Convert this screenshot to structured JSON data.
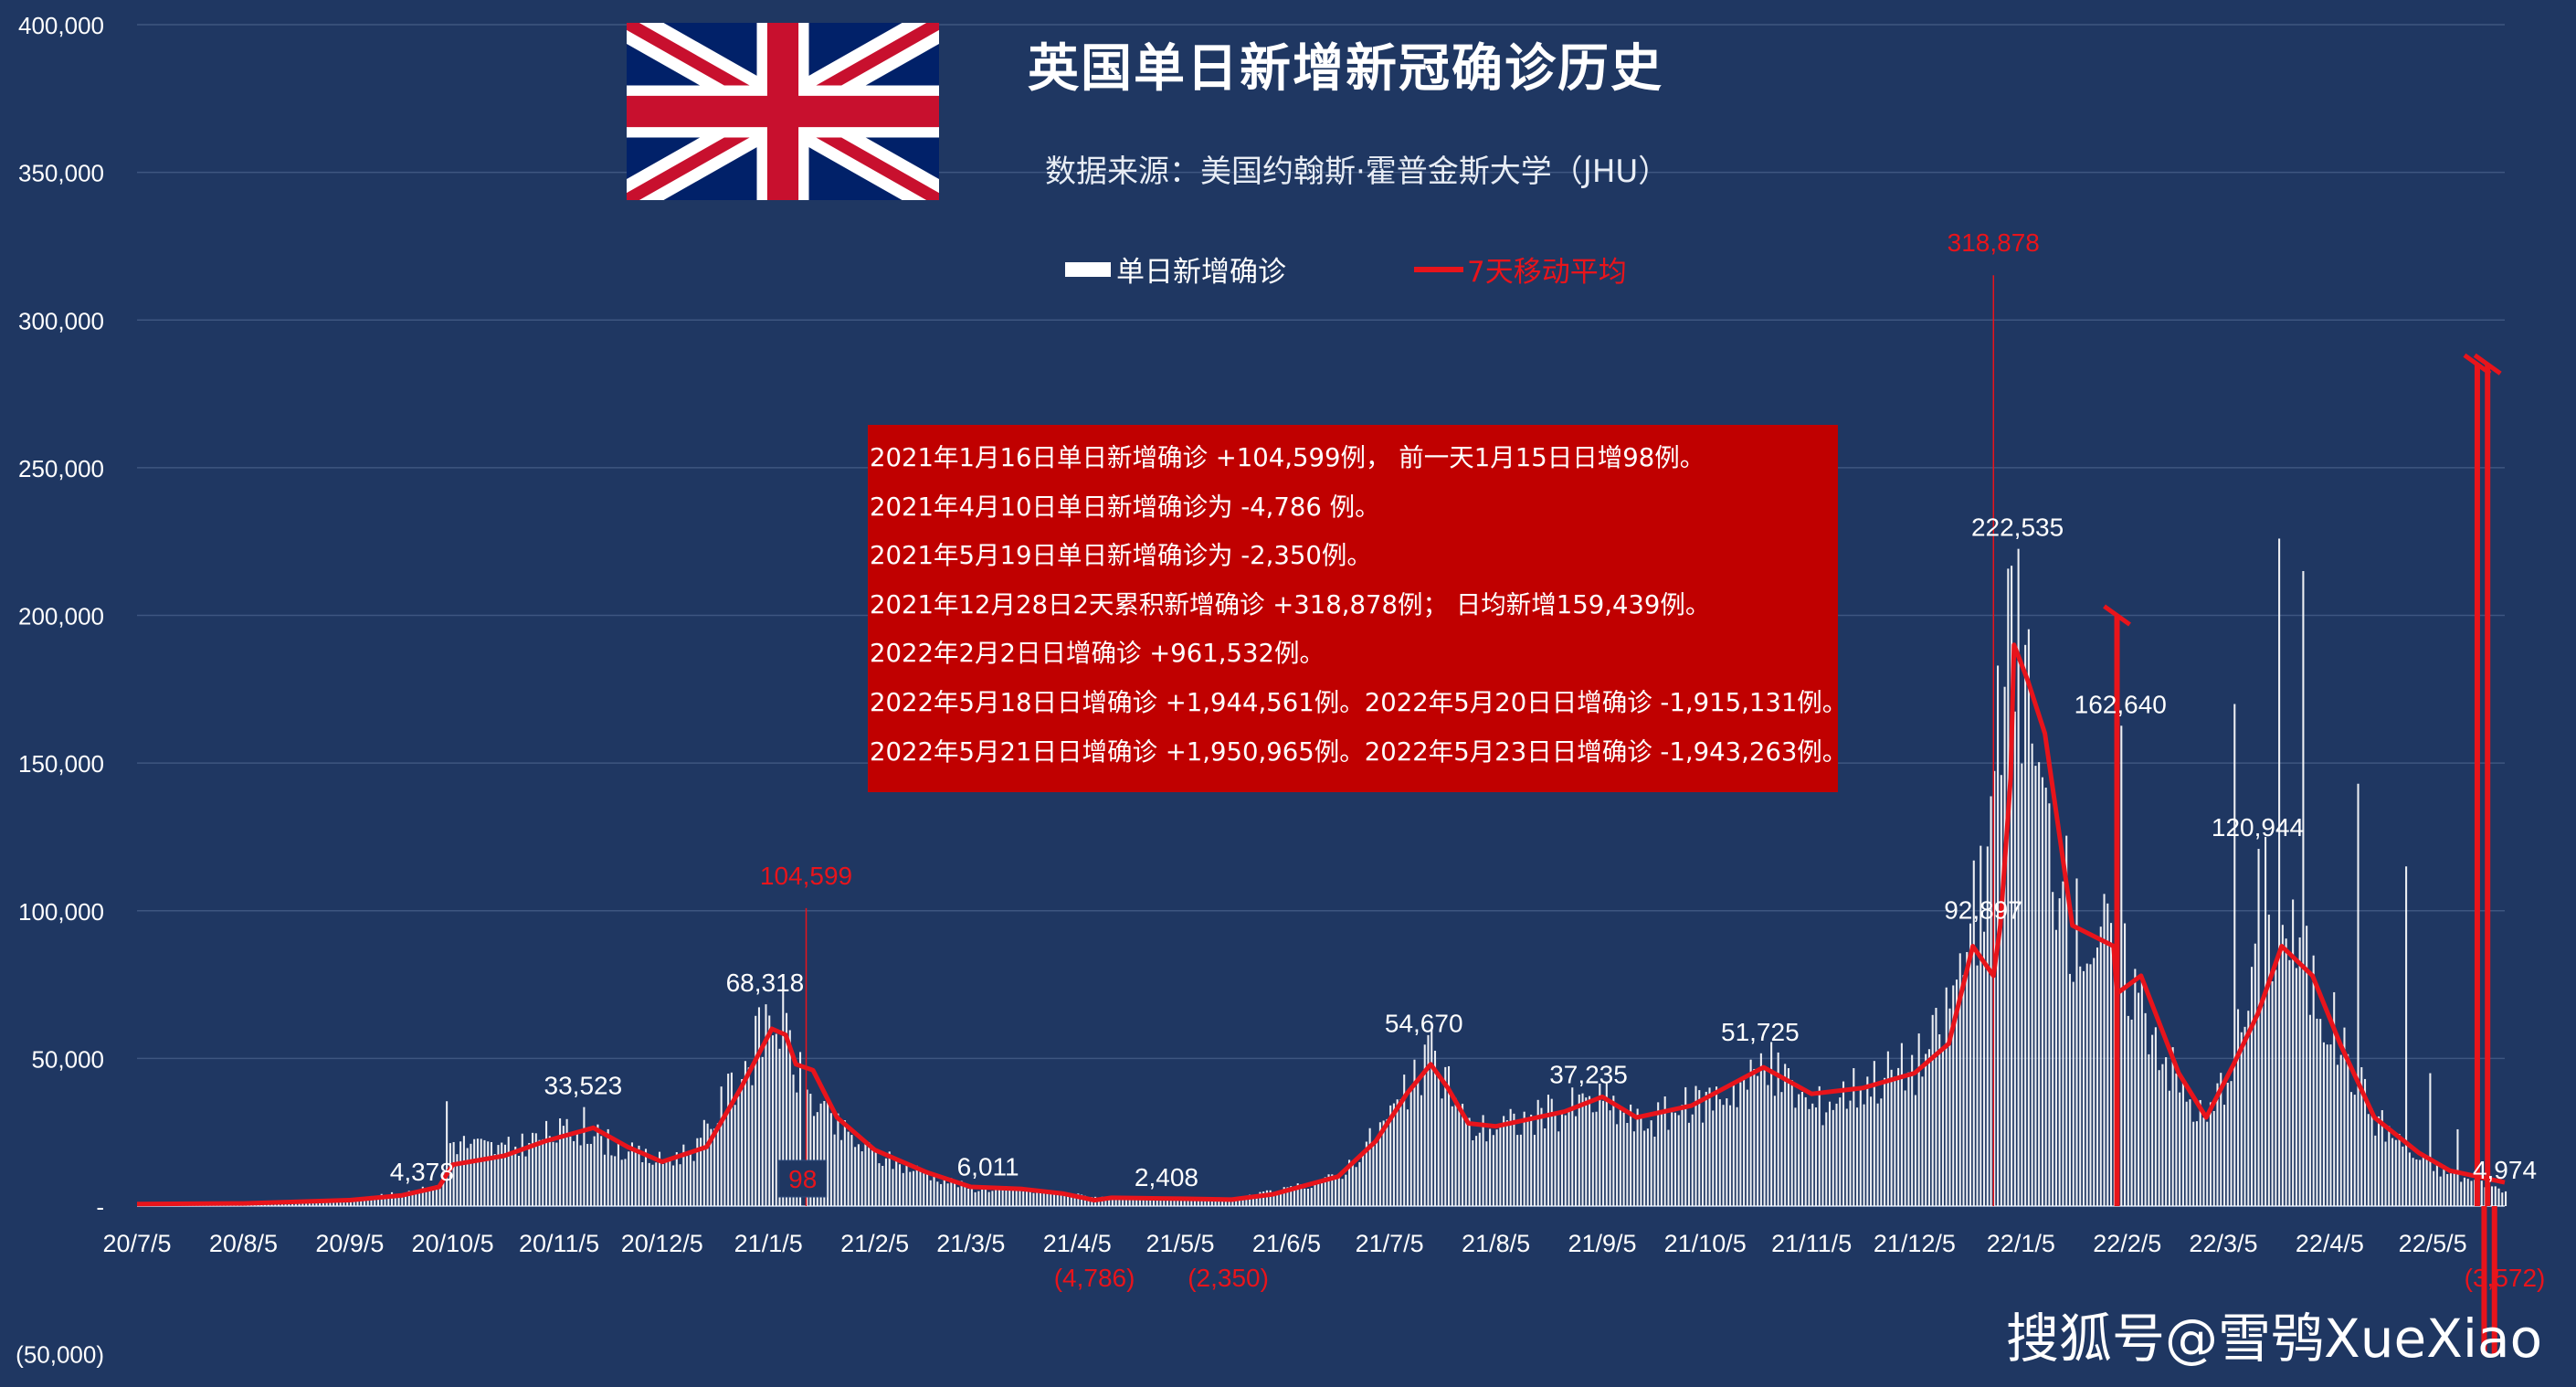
{
  "header": {
    "title": "英国单日新增新冠确诊历史",
    "source": "数据来源：美国约翰斯·霍普金斯大学（JHU）"
  },
  "legend": {
    "bar_label": "单日新增确诊",
    "line_label": "7天移动平均"
  },
  "notes": [
    "2021年1月16日单日新增确诊 +104,599例， 前一天1月15日日增98例。",
    "2021年4月10日单日新增确诊为 -4,786 例。",
    "2021年5月19日单日新增确诊为 -2,350例。",
    "2021年12月28日2天累积新增确诊 +318,878例； 日均新增159,439例。",
    "2022年2月2日日增确诊 +961,532例。",
    "2022年5月18日日增确诊 +1,944,561例。2022年5月20日日增确诊 -1,915,131例。",
    "2022年5月21日日增确诊 +1,950,965例。2022年5月23日日增确诊 -1,943,263例。"
  ],
  "watermark": "搜狐号@雪鸮XueXiao",
  "colors": {
    "background": "#1f3762",
    "bars": "#ffffff",
    "moving_average": "#e8141b",
    "note_box": "#c00000",
    "red_label": "#e8141b"
  },
  "chart_data": {
    "type": "bar",
    "overlay_type": "line",
    "ylim": [
      -50000,
      400000
    ],
    "y_ticks": [
      {
        "value": 400000,
        "label": "400,000"
      },
      {
        "value": 350000,
        "label": "350,000"
      },
      {
        "value": 300000,
        "label": "300,000"
      },
      {
        "value": 250000,
        "label": "250,000"
      },
      {
        "value": 200000,
        "label": "200,000"
      },
      {
        "value": 150000,
        "label": "150,000"
      },
      {
        "value": 100000,
        "label": "100,000"
      },
      {
        "value": 50000,
        "label": "50,000"
      },
      {
        "value": 0,
        "label": "-"
      },
      {
        "value": -50000,
        "label": "(50,000)"
      }
    ],
    "x_ticks": [
      "20/7/5",
      "20/8/5",
      "20/9/5",
      "20/10/5",
      "20/11/5",
      "20/12/5",
      "21/1/5",
      "21/2/5",
      "21/3/5",
      "21/4/5",
      "21/5/5",
      "21/6/5",
      "21/7/5",
      "21/8/5",
      "21/9/5",
      "21/10/5",
      "21/11/5",
      "21/12/5",
      "22/1/5",
      "22/2/5",
      "22/3/5",
      "22/4/5",
      "22/5/5"
    ],
    "x_domain": [
      "2020-07-05",
      "2022-05-26"
    ],
    "grid": true,
    "legend_position": "top-center",
    "series": [
      {
        "name": "单日新增确诊",
        "kind": "bar",
        "anchors": [
          [
            "2020-07-05",
            600
          ],
          [
            "2020-08-01",
            900
          ],
          [
            "2020-08-15",
            1100
          ],
          [
            "2020-09-01",
            1800
          ],
          [
            "2020-09-15",
            3500
          ],
          [
            "2020-10-01",
            6500
          ],
          [
            "2020-10-04",
            22000
          ],
          [
            "2020-10-20",
            19000
          ],
          [
            "2020-11-01",
            24000
          ],
          [
            "2020-11-12",
            26000
          ],
          [
            "2020-11-25",
            18000
          ],
          [
            "2020-12-05",
            15000
          ],
          [
            "2020-12-15",
            20000
          ],
          [
            "2020-12-25",
            40000
          ],
          [
            "2021-01-03",
            58000
          ],
          [
            "2021-01-08",
            64000
          ],
          [
            "2021-01-15",
            40000
          ],
          [
            "2021-01-25",
            26000
          ],
          [
            "2021-02-05",
            17000
          ],
          [
            "2021-02-20",
            11000
          ],
          [
            "2021-03-05",
            6000
          ],
          [
            "2021-03-20",
            5500
          ],
          [
            "2021-04-01",
            4000
          ],
          [
            "2021-04-15",
            2600
          ],
          [
            "2021-05-05",
            2300
          ],
          [
            "2021-05-20",
            2500
          ],
          [
            "2021-06-05",
            5500
          ],
          [
            "2021-06-20",
            10000
          ],
          [
            "2021-07-01",
            25000
          ],
          [
            "2021-07-10",
            38000
          ],
          [
            "2021-07-17",
            50000
          ],
          [
            "2021-07-22",
            42000
          ],
          [
            "2021-07-28",
            26000
          ],
          [
            "2021-08-10",
            28000
          ],
          [
            "2021-08-25",
            33000
          ],
          [
            "2021-09-05",
            36000
          ],
          [
            "2021-09-15",
            28000
          ],
          [
            "2021-10-01",
            34000
          ],
          [
            "2021-10-20",
            44000
          ],
          [
            "2021-10-25",
            46000
          ],
          [
            "2021-11-05",
            33000
          ],
          [
            "2021-11-20",
            42000
          ],
          [
            "2021-12-05",
            48000
          ],
          [
            "2021-12-12",
            58000
          ],
          [
            "2021-12-20",
            88000
          ],
          [
            "2021-12-27",
            118000
          ],
          [
            "2021-12-31",
            175000
          ],
          [
            "2022-01-04",
            195000
          ],
          [
            "2022-01-10",
            140000
          ],
          [
            "2022-01-20",
            95000
          ],
          [
            "2022-02-01",
            88000
          ],
          [
            "2022-02-10",
            68000
          ],
          [
            "2022-02-20",
            40000
          ],
          [
            "2022-02-28",
            28000
          ],
          [
            "2022-03-10",
            60000
          ],
          [
            "2022-03-18",
            90000
          ],
          [
            "2022-03-24",
            92000
          ],
          [
            "2022-03-31",
            75000
          ],
          [
            "2022-04-08",
            55000
          ],
          [
            "2022-04-18",
            30000
          ],
          [
            "2022-05-01",
            15000
          ],
          [
            "2022-05-15",
            9000
          ],
          [
            "2022-05-26",
            5000
          ]
        ],
        "spikes": [
          [
            "2020-10-03",
            35500
          ],
          [
            "2020-11-12",
            33523
          ],
          [
            "2021-01-04",
            68318
          ],
          [
            "2021-07-15",
            54670
          ],
          [
            "2021-09-01",
            37235
          ],
          [
            "2021-10-21",
            51725
          ],
          [
            "2021-12-24",
            122000
          ],
          [
            "2021-12-25",
            92897
          ],
          [
            "2021-12-29",
            183000
          ],
          [
            "2022-01-04",
            222535
          ],
          [
            "2022-01-06",
            190000
          ],
          [
            "2022-02-03",
            162640
          ],
          [
            "2022-03-15",
            120944
          ],
          [
            "2022-03-08",
            170000
          ],
          [
            "2022-03-17",
            125000
          ],
          [
            "2022-03-21",
            226000
          ],
          [
            "2022-03-28",
            215000
          ],
          [
            "2022-04-13",
            143000
          ],
          [
            "2022-04-27",
            115000
          ],
          [
            "2022-05-04",
            45000
          ],
          [
            "2022-05-12",
            26000
          ],
          [
            "2022-05-26",
            4974
          ]
        ]
      },
      {
        "name": "7天移动平均",
        "kind": "line",
        "points": [
          [
            "2020-07-05",
            700
          ],
          [
            "2020-08-05",
            900
          ],
          [
            "2020-09-05",
            2000
          ],
          [
            "2020-09-20",
            3600
          ],
          [
            "2020-10-01",
            6500
          ],
          [
            "2020-10-05",
            14000
          ],
          [
            "2020-10-20",
            17000
          ],
          [
            "2020-11-01",
            22000
          ],
          [
            "2020-11-15",
            26500
          ],
          [
            "2020-11-25",
            20000
          ],
          [
            "2020-12-05",
            15000
          ],
          [
            "2020-12-18",
            20000
          ],
          [
            "2020-12-28",
            40000
          ],
          [
            "2021-01-06",
            60000
          ],
          [
            "2021-01-10",
            58000
          ],
          [
            "2021-01-13",
            48000
          ],
          [
            "2021-01-18",
            46000
          ],
          [
            "2021-01-25",
            30000
          ],
          [
            "2021-02-05",
            19000
          ],
          [
            "2021-02-20",
            11500
          ],
          [
            "2021-03-05",
            6500
          ],
          [
            "2021-03-20",
            5800
          ],
          [
            "2021-04-01",
            4200
          ],
          [
            "2021-04-10",
            2000
          ],
          [
            "2021-04-15",
            2800
          ],
          [
            "2021-05-05",
            2500
          ],
          [
            "2021-05-20",
            2200
          ],
          [
            "2021-06-01",
            4000
          ],
          [
            "2021-06-20",
            10000
          ],
          [
            "2021-07-01",
            22000
          ],
          [
            "2021-07-10",
            38000
          ],
          [
            "2021-07-17",
            48000
          ],
          [
            "2021-07-22",
            40000
          ],
          [
            "2021-07-28",
            28000
          ],
          [
            "2021-08-05",
            27000
          ],
          [
            "2021-08-25",
            32000
          ],
          [
            "2021-09-05",
            37000
          ],
          [
            "2021-09-15",
            30000
          ],
          [
            "2021-10-01",
            34000
          ],
          [
            "2021-10-22",
            47000
          ],
          [
            "2021-11-05",
            38000
          ],
          [
            "2021-11-20",
            40000
          ],
          [
            "2021-12-05",
            45000
          ],
          [
            "2021-12-15",
            55000
          ],
          [
            "2021-12-22",
            88000
          ],
          [
            "2021-12-28",
            78000
          ],
          [
            "2021-12-30",
            95000
          ],
          [
            "2022-01-02",
            145000
          ],
          [
            "2022-01-03",
            190000
          ],
          [
            "2022-01-07",
            178000
          ],
          [
            "2022-01-12",
            160000
          ],
          [
            "2022-01-20",
            95000
          ],
          [
            "2022-02-01",
            88000
          ],
          [
            "2022-02-02",
            72000
          ],
          [
            "2022-02-09",
            78000
          ],
          [
            "2022-02-20",
            45000
          ],
          [
            "2022-02-28",
            30000
          ],
          [
            "2022-03-08",
            48000
          ],
          [
            "2022-03-15",
            65000
          ],
          [
            "2022-03-22",
            88000
          ],
          [
            "2022-03-31",
            78000
          ],
          [
            "2022-04-08",
            55000
          ],
          [
            "2022-04-18",
            30000
          ],
          [
            "2022-05-01",
            18000
          ],
          [
            "2022-05-10",
            12000
          ],
          [
            "2022-05-26",
            8000
          ]
        ],
        "excursions": [
          {
            "date": "2022-02-02",
            "value": 200000
          },
          {
            "date": "2022-05-18",
            "value": 285000
          },
          {
            "date": "2022-05-20",
            "value": -50000
          },
          {
            "date": "2022-05-21",
            "value": 285000
          },
          {
            "date": "2022-05-23",
            "value": -50000
          }
        ]
      }
    ],
    "annotations": [
      {
        "date": "2021-01-16",
        "value": 104599,
        "label": "104,599",
        "color": "red",
        "leader": true
      },
      {
        "date": "2021-01-15",
        "value": 98,
        "label": "98",
        "color": "red",
        "boxed": true
      },
      {
        "date": "2021-12-28",
        "value": 318878,
        "label": "318,878",
        "color": "red",
        "leader": true
      },
      {
        "date": "2021-04-10",
        "value": -4786,
        "label": "(4,786)",
        "color": "red"
      },
      {
        "date": "2021-05-19",
        "value": -2350,
        "label": "(2,350)",
        "color": "red"
      },
      {
        "date": "2022-05-26",
        "value": -3572,
        "label": "(3,572)",
        "color": "red"
      },
      {
        "date": "2020-09-26",
        "value": 4378,
        "label": "4,378",
        "color": "white"
      },
      {
        "date": "2020-11-12",
        "value": 33523,
        "label": "33,523",
        "color": "white"
      },
      {
        "date": "2021-01-04",
        "value": 68318,
        "label": "68,318",
        "color": "white"
      },
      {
        "date": "2021-03-10",
        "value": 6011,
        "label": "6,011",
        "color": "white"
      },
      {
        "date": "2021-05-01",
        "value": 2408,
        "label": "2,408",
        "color": "white"
      },
      {
        "date": "2021-07-15",
        "value": 54670,
        "label": "54,670",
        "color": "white"
      },
      {
        "date": "2021-09-01",
        "value": 37235,
        "label": "37,235",
        "color": "white"
      },
      {
        "date": "2021-10-21",
        "value": 51725,
        "label": "51,725",
        "color": "white"
      },
      {
        "date": "2021-12-25",
        "value": 92897,
        "label": "92,897",
        "color": "white"
      },
      {
        "date": "2022-01-04",
        "value": 222535,
        "label": "222,535",
        "color": "white"
      },
      {
        "date": "2022-02-03",
        "value": 162640,
        "label": "162,640",
        "color": "white"
      },
      {
        "date": "2022-03-15",
        "value": 120944,
        "label": "120,944",
        "color": "white"
      },
      {
        "date": "2022-05-26",
        "value": 4974,
        "label": "4,974",
        "color": "white"
      }
    ]
  }
}
